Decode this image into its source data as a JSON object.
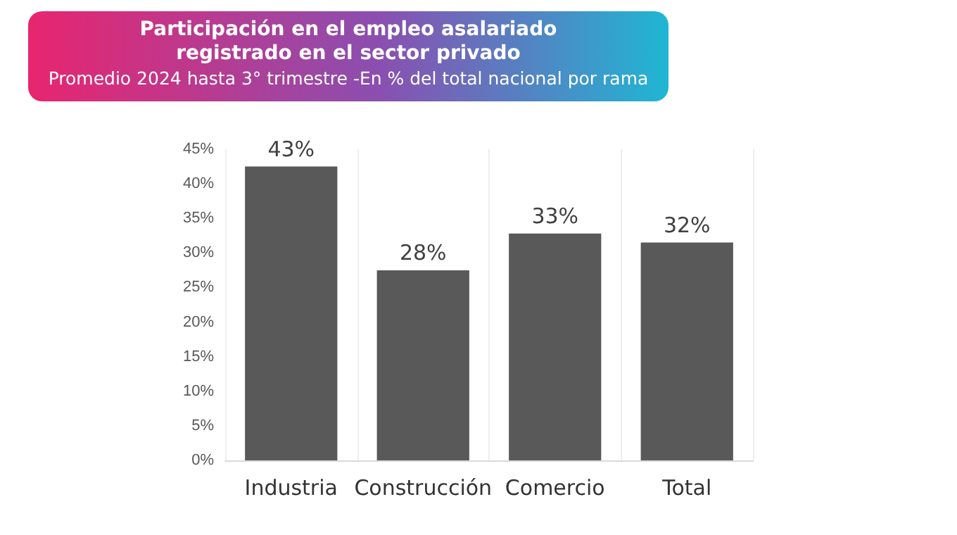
{
  "chart_data": {
    "type": "bar",
    "title": "Participación en el empleo asalariado registrado en el sector privado",
    "subtitle": "Promedio 2024 hasta 3° trimestre -En % del total nacional por rama",
    "categories": [
      "Industria",
      "Construcción",
      "Comercio",
      "Total"
    ],
    "values": [
      42.5,
      27.5,
      32.8,
      31.5
    ],
    "value_labels": [
      "43%",
      "28%",
      "33%",
      "32%"
    ],
    "color": "#595959",
    "ylim": [
      0,
      45
    ],
    "yticks": [
      {
        "value": 0,
        "label": "0%"
      },
      {
        "value": 5,
        "label": "5%"
      },
      {
        "value": 10,
        "label": "10%"
      },
      {
        "value": 15,
        "label": "15%"
      },
      {
        "value": 20,
        "label": "20%"
      },
      {
        "value": 25,
        "label": "25%"
      },
      {
        "value": 30,
        "label": "30%"
      },
      {
        "value": 35,
        "label": "35%"
      },
      {
        "value": 40,
        "label": "40%"
      },
      {
        "value": 45,
        "label": "45%"
      }
    ],
    "grid": "x"
  }
}
